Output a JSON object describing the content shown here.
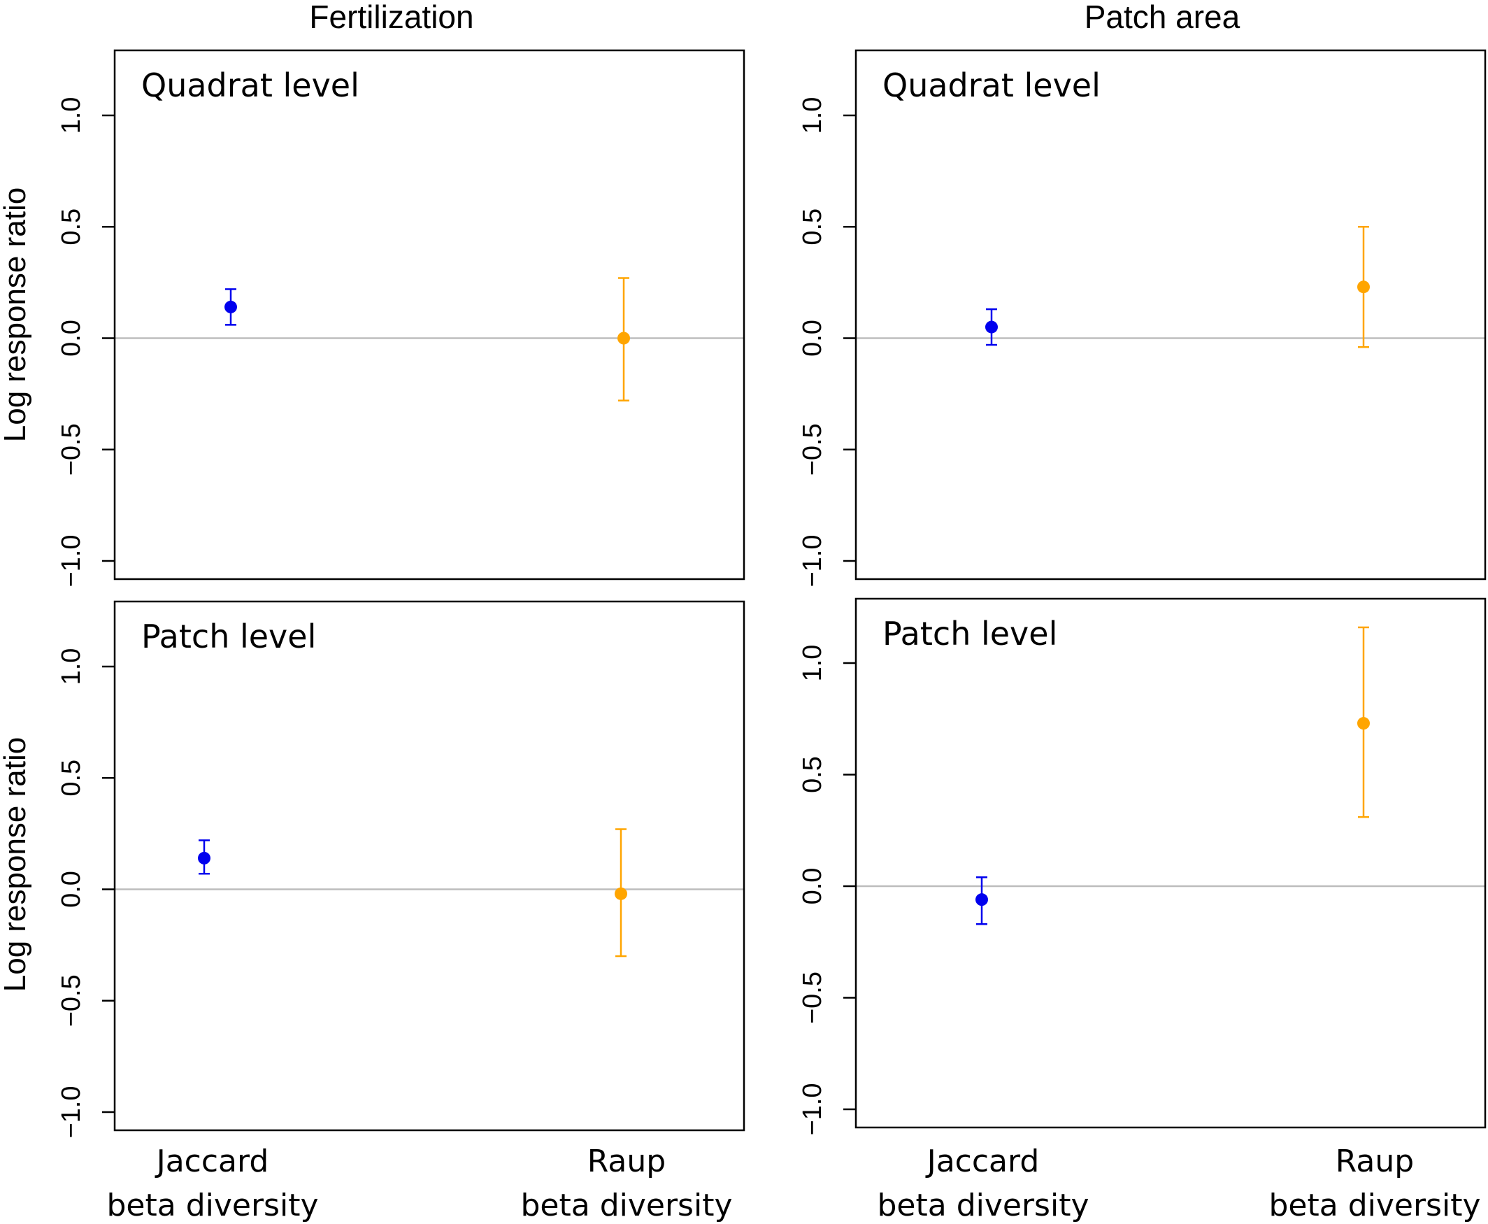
{
  "columns": [
    {
      "title": "Fertilization"
    },
    {
      "title": "Patch area"
    }
  ],
  "y_axis_label": "Log response ratio",
  "x_categories": [
    {
      "line1": "Jaccard",
      "line2": "beta diversity"
    },
    {
      "line1": "Raup",
      "line2": "beta diversity"
    }
  ],
  "colors": {
    "jaccard": "#0000ee",
    "raup": "#ffa500",
    "zero_line": "#bdbdbd",
    "frame": "#000000"
  },
  "chart_data": [
    {
      "type": "scatter",
      "column": "Fertilization",
      "panel_label": "Quadrat level",
      "ylim": [
        -1.0,
        1.0
      ],
      "yticks": [
        "1.0",
        "0.5",
        "0.0",
        "−0.5",
        "−1.0"
      ],
      "categories": [
        "Jaccard beta diversity",
        "Raup beta diversity"
      ],
      "points": [
        {
          "category": "Jaccard beta diversity",
          "y": 0.14,
          "lo": 0.06,
          "hi": 0.22
        },
        {
          "category": "Raup beta diversity",
          "y": 0.0,
          "lo": -0.28,
          "hi": 0.27
        }
      ],
      "reference_line": 0.0
    },
    {
      "type": "scatter",
      "column": "Patch area",
      "panel_label": "Quadrat level",
      "ylim": [
        -1.0,
        1.0
      ],
      "yticks": [
        "1.0",
        "0.5",
        "0.0",
        "−0.5",
        "−1.0"
      ],
      "categories": [
        "Jaccard beta diversity",
        "Raup beta diversity"
      ],
      "points": [
        {
          "category": "Jaccard beta diversity",
          "y": 0.05,
          "lo": -0.03,
          "hi": 0.13
        },
        {
          "category": "Raup beta diversity",
          "y": 0.23,
          "lo": -0.04,
          "hi": 0.5
        }
      ],
      "reference_line": 0.0
    },
    {
      "type": "scatter",
      "column": "Fertilization",
      "panel_label": "Patch level",
      "ylim": [
        -1.0,
        1.0
      ],
      "yticks": [
        "1.0",
        "0.5",
        "0.0",
        "−0.5",
        "−1.0"
      ],
      "categories": [
        "Jaccard beta diversity",
        "Raup beta diversity"
      ],
      "points": [
        {
          "category": "Jaccard beta diversity",
          "y": 0.14,
          "lo": 0.07,
          "hi": 0.22
        },
        {
          "category": "Raup beta diversity",
          "y": -0.02,
          "lo": -0.3,
          "hi": 0.27
        }
      ],
      "reference_line": 0.0
    },
    {
      "type": "scatter",
      "column": "Patch area",
      "panel_label": "Patch level",
      "ylim": [
        -1.0,
        1.0
      ],
      "yticks": [
        "1.0",
        "0.5",
        "0.0",
        "−0.5",
        "−1.0"
      ],
      "categories": [
        "Jaccard beta diversity",
        "Raup beta diversity"
      ],
      "points": [
        {
          "category": "Jaccard beta diversity",
          "y": -0.06,
          "lo": -0.17,
          "hi": 0.04
        },
        {
          "category": "Raup beta diversity",
          "y": 0.73,
          "lo": 0.31,
          "hi": 1.16
        }
      ],
      "reference_line": 0.0
    }
  ]
}
